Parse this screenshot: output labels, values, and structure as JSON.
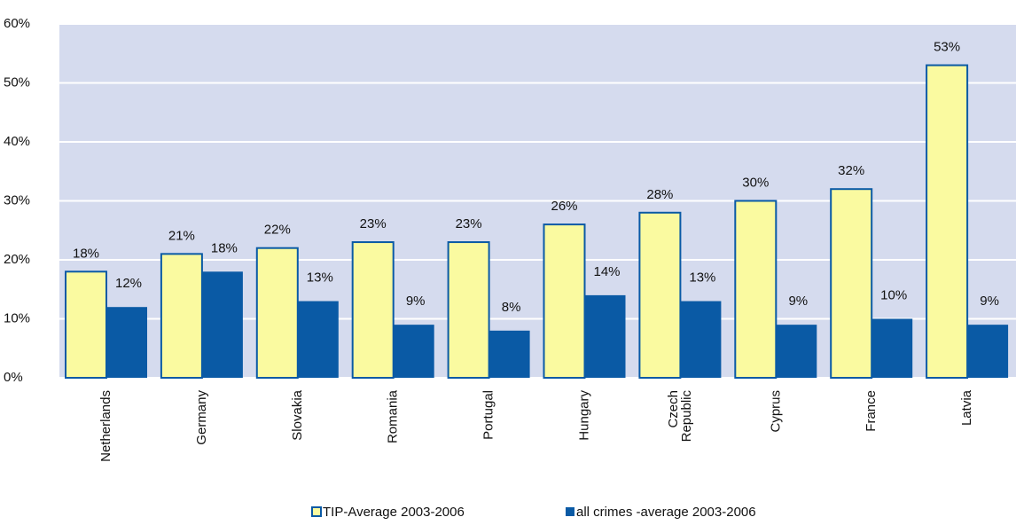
{
  "chart_data": {
    "type": "bar",
    "categories": [
      "Netherlands",
      "Germany",
      "Slovakia",
      "Romania",
      "Portugal",
      "Hungary",
      "Czech Republic",
      "Cyprus",
      "France",
      "Latvia"
    ],
    "series": [
      {
        "name": "TIP-Average 2003-2006",
        "color": "#fafaa0",
        "stroke": "#0a5aa5",
        "values": [
          18,
          21,
          22,
          23,
          23,
          26,
          28,
          30,
          32,
          53
        ],
        "value_labels": [
          "18%",
          "21%",
          "22%",
          "23%",
          "23%",
          "26%",
          "28%",
          "30%",
          "32%",
          "53%"
        ]
      },
      {
        "name": "all crimes -average 2003-2006",
        "color": "#0a5aa5",
        "values": [
          12,
          18,
          13,
          9,
          8,
          14,
          13,
          9,
          10,
          9
        ],
        "value_labels": [
          "12%",
          "18%",
          "13%",
          "9%",
          "8%",
          "14%",
          "13%",
          "9%",
          "10%",
          "9%"
        ]
      }
    ],
    "ylim": [
      0,
      60
    ],
    "yticks": [
      {
        "value": 0,
        "label": "0%"
      },
      {
        "value": 10,
        "label": "10%"
      },
      {
        "value": 20,
        "label": "20%"
      },
      {
        "value": 30,
        "label": "30%"
      },
      {
        "value": 40,
        "label": "40%"
      },
      {
        "value": 50,
        "label": "50%"
      },
      {
        "value": 60,
        "label": "60%"
      }
    ],
    "grid": true,
    "legend": "bottom"
  }
}
